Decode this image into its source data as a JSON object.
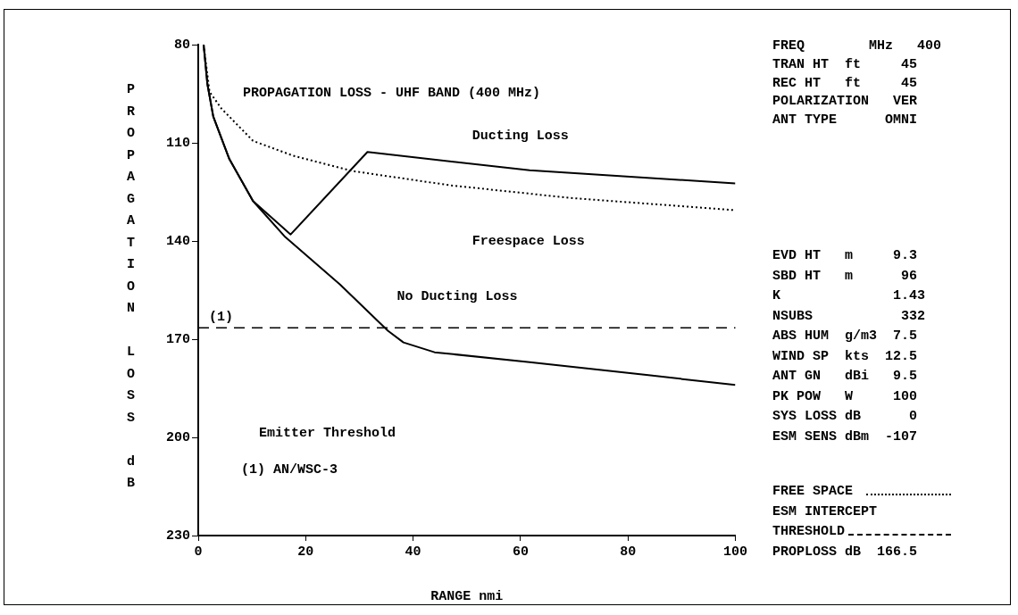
{
  "chart_data": {
    "type": "line",
    "title": "PROPAGATION LOSS - UHF BAND (400 MHz)",
    "xlabel": "RANGE nmi",
    "ylabel": "PROPAGATION LOSS dB",
    "xlim": [
      0,
      100
    ],
    "xticks": [
      0,
      20,
      40,
      60,
      80,
      100
    ],
    "ylim": [
      230,
      80
    ],
    "yticks": [
      80,
      110,
      140,
      170,
      200,
      230
    ],
    "grid": false,
    "legend": false,
    "marker": "none",
    "series": [
      {
        "name": "Ducting Loss",
        "color": "#000000",
        "line_style": "solid",
        "x": [
          1,
          1.7,
          2.8,
          5.8,
          10.2,
          17.2,
          31.5,
          61.7,
          100
        ],
        "values": [
          80,
          92,
          102,
          115,
          127.8,
          138,
          112.8,
          118.4,
          122.4
        ]
      },
      {
        "name": "Freespace Loss",
        "color": "#000000",
        "line_style": "dotted",
        "x": [
          1,
          2.1,
          4.3,
          10.2,
          17.6,
          28.6,
          47,
          69,
          100
        ],
        "values": [
          80,
          94.4,
          99.5,
          109.4,
          113.9,
          118.6,
          123,
          126.8,
          130.6
        ]
      },
      {
        "name": "No Ducting Loss",
        "color": "#000000",
        "line_style": "solid",
        "x": [
          1,
          1.7,
          2.8,
          5.8,
          10.2,
          16.2,
          26.4,
          35.3,
          38.2,
          44,
          61.7,
          83.8,
          100
        ],
        "values": [
          80,
          92,
          102,
          115,
          127.8,
          138.8,
          153.3,
          167.4,
          171,
          174,
          177,
          181,
          184
        ]
      }
    ],
    "ref_lines": [
      {
        "axis": "y",
        "value": 166.5,
        "color": "#000000",
        "line_style": "dashed"
      }
    ],
    "annotations": [
      "Emitter Threshold",
      "(1) AN/WSC-3",
      "FREQ        MHz   400",
      "TRAN HT  ft     45",
      "REC HT   ft     45",
      "POLARIZATION   VER",
      "ANT TYPE      OMNI",
      "EVD HT   m     9.3",
      "SBD HT   m      96",
      "K              1.43",
      "NSUBS           332",
      "ABS HUM  g/m3  7.5",
      "WIND SP  kts  12.5",
      "ANT GN   dBi   9.5",
      "PK POW   W     100",
      "SYS LOSS dB      0",
      "ESM SENS dBm  -107",
      "FREE SPACE",
      "ESM INTERCEPT",
      "THRESHOLD",
      "PROPLOSS dB  166.5",
      {
        "text": "(1)",
        "x": 2,
        "y": 166.5
      }
    ]
  }
}
